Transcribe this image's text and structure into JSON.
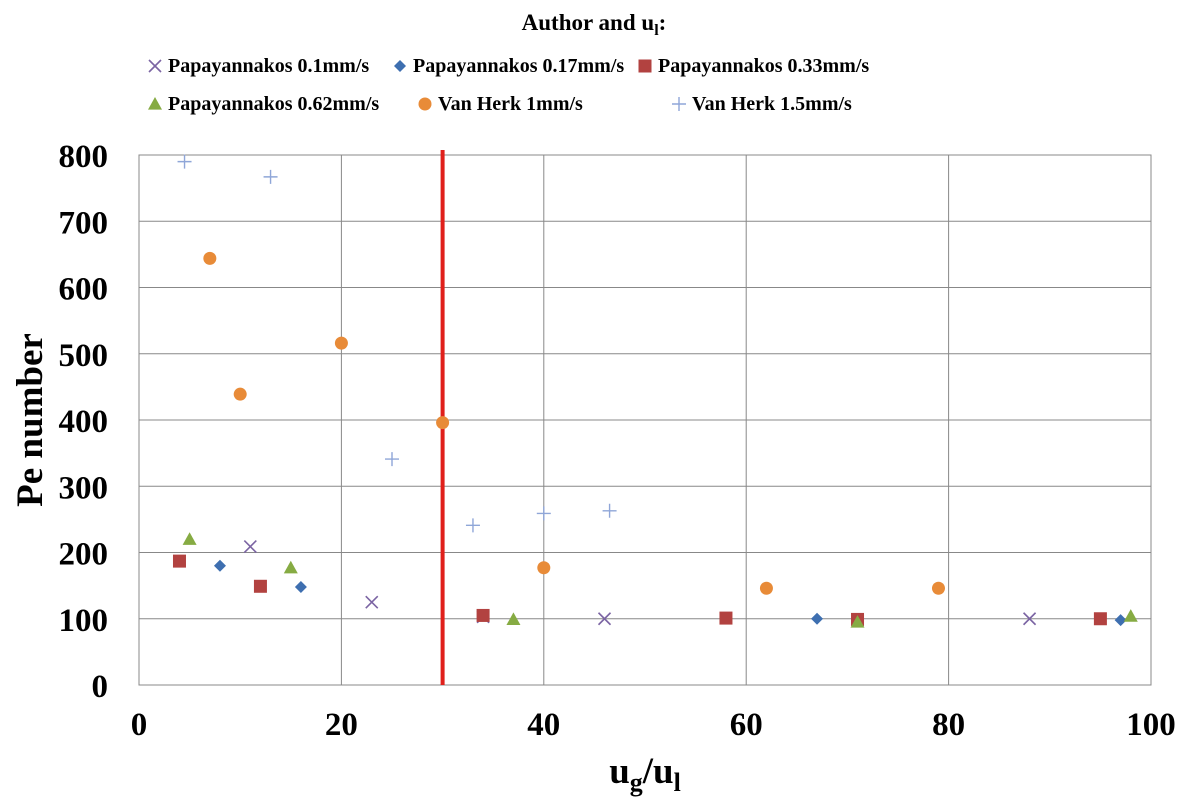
{
  "chart_data": {
    "type": "scatter",
    "legend_title": "Author and u",
    "legend_title_sub": "l",
    "legend_title_suffix": ":",
    "legend_position": "top",
    "xlabel": "u",
    "xlabel_sub1": "g",
    "xlabel_mid": "/u",
    "xlabel_sub2": "l",
    "ylabel": "Pe number",
    "xlim": [
      0,
      100
    ],
    "ylim": [
      0,
      800
    ],
    "xticks": [
      0,
      20,
      40,
      60,
      80,
      100
    ],
    "yticks": [
      0,
      100,
      200,
      300,
      400,
      500,
      600,
      700,
      800
    ],
    "grid": true,
    "reference_line": {
      "x": 30,
      "color": "#e0201b"
    },
    "series": [
      {
        "name": "Papayannakos 0.1mm/s",
        "marker": "x",
        "color": "#7b64a3",
        "points": [
          [
            11,
            209
          ],
          [
            23,
            125
          ],
          [
            34,
            103
          ],
          [
            46,
            100
          ],
          [
            88,
            100
          ]
        ]
      },
      {
        "name": "Papayannakos 0.17mm/s",
        "marker": "diamond",
        "color": "#3e6fb0",
        "points": [
          [
            8,
            180
          ],
          [
            16,
            148
          ],
          [
            67,
            100
          ],
          [
            97,
            98
          ]
        ]
      },
      {
        "name": "Papayannakos 0.33mm/s",
        "marker": "square",
        "color": "#b24240",
        "points": [
          [
            4,
            187
          ],
          [
            12,
            149
          ],
          [
            34,
            105
          ],
          [
            58,
            101
          ],
          [
            71,
            99
          ],
          [
            95,
            100
          ]
        ]
      },
      {
        "name": "Papayannakos 0.62mm/s",
        "marker": "triangle",
        "color": "#86ab43",
        "points": [
          [
            5,
            220
          ],
          [
            15,
            177
          ],
          [
            37,
            99
          ],
          [
            71,
            95
          ],
          [
            98,
            104
          ]
        ]
      },
      {
        "name": "Van Herk 1mm/s",
        "marker": "circle",
        "color": "#e88b38",
        "points": [
          [
            7,
            644
          ],
          [
            10,
            439
          ],
          [
            20,
            516
          ],
          [
            30,
            396
          ],
          [
            40,
            177
          ],
          [
            62,
            146
          ],
          [
            79,
            146
          ]
        ]
      },
      {
        "name": "Van Herk 1.5mm/s",
        "marker": "plus",
        "color": "#8fa6d8",
        "points": [
          [
            4.5,
            790
          ],
          [
            13,
            767
          ],
          [
            25,
            341
          ],
          [
            33,
            241
          ],
          [
            40,
            259
          ],
          [
            46.5,
            263
          ]
        ]
      }
    ]
  }
}
